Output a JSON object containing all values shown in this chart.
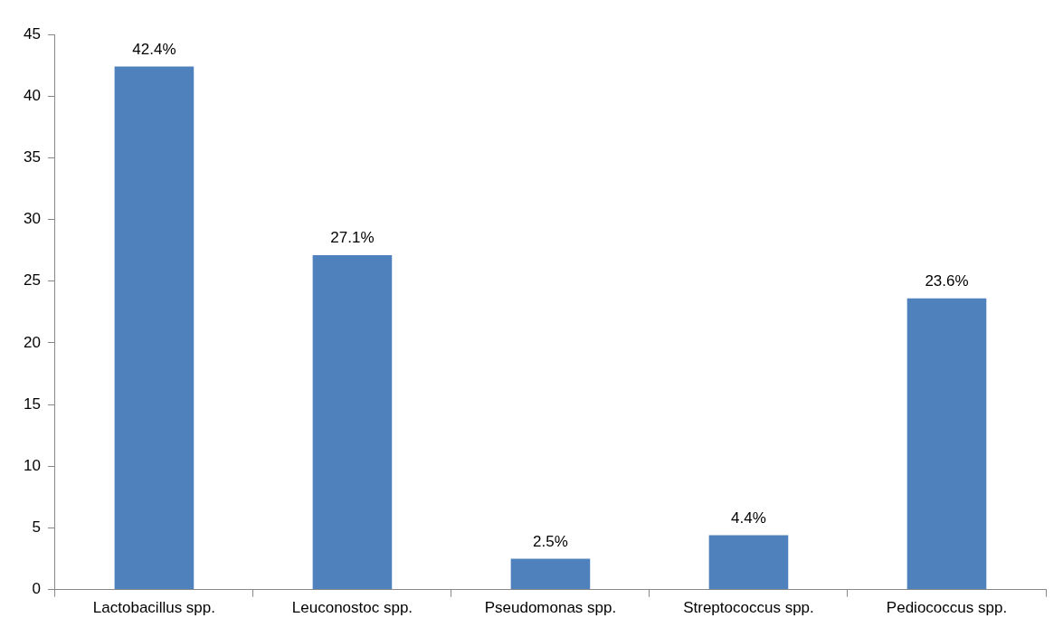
{
  "chart_data": {
    "type": "bar",
    "categories": [
      "Lactobacillus spp.",
      "Leuconostoc spp.",
      "Pseudomonas spp.",
      "Streptococcus spp.",
      "Pediococcus spp."
    ],
    "values": [
      42.4,
      27.1,
      2.5,
      4.4,
      23.6
    ],
    "value_labels": [
      "42.4%",
      "27.1%",
      "2.5%",
      "4.4%",
      "23.6%"
    ],
    "color": "#4f81bd",
    "ylim": [
      0,
      45
    ],
    "yticks": [
      0,
      5,
      10,
      15,
      20,
      25,
      30,
      35,
      40,
      45
    ],
    "grid": false,
    "legend": false
  }
}
